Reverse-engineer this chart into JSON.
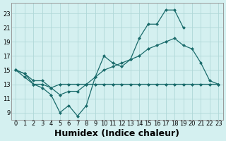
{
  "x_all": [
    0,
    1,
    2,
    3,
    4,
    5,
    6,
    7,
    8,
    9,
    10,
    11,
    12,
    13,
    14,
    15,
    16,
    17,
    18,
    19,
    20,
    21,
    22,
    23
  ],
  "curve1_x": [
    0,
    1,
    2,
    3,
    4,
    5,
    6,
    7,
    8,
    9,
    10,
    11,
    12,
    13,
    14,
    15,
    16,
    17,
    18,
    19
  ],
  "curve1_y": [
    15,
    14.5,
    13,
    12.5,
    11.5,
    9,
    10,
    8.5,
    10,
    14,
    17,
    16,
    15.5,
    16.5,
    19.5,
    21.5,
    21.5,
    23.5,
    23.5,
    21
  ],
  "curve2_x": [
    0,
    1,
    2,
    3,
    4,
    5,
    6,
    7,
    8,
    9,
    10,
    11,
    12,
    13,
    14,
    15,
    16,
    17,
    18,
    19,
    20,
    21,
    22,
    23
  ],
  "curve2_y": [
    15,
    14.5,
    13.5,
    13.5,
    12.5,
    11.5,
    12,
    12,
    13,
    14,
    15,
    15.5,
    16,
    16.5,
    17,
    18,
    18.5,
    19,
    19.5,
    18.5,
    18,
    16,
    13.5,
    13
  ],
  "curve3_x": [
    0,
    1,
    2,
    3,
    4,
    5,
    6,
    7,
    8,
    9,
    10,
    11,
    12,
    13,
    14,
    15,
    16,
    17,
    18,
    19,
    20,
    21,
    22,
    23
  ],
  "curve3_y": [
    15,
    14,
    13,
    13,
    12.5,
    13,
    13,
    13,
    13,
    13,
    13,
    13,
    13,
    13,
    13,
    13,
    13,
    13,
    13,
    13,
    13,
    13,
    13,
    13
  ],
  "line_color": "#1a6b6b",
  "bg_color": "#d4f0f0",
  "grid_color": "#b0d8d8",
  "xlabel": "Humidex (Indice chaleur)",
  "xlabel_fontsize": 9,
  "ylim": [
    8,
    24.5
  ],
  "xlim": [
    -0.5,
    23.5
  ],
  "yticks": [
    9,
    11,
    13,
    15,
    17,
    19,
    21,
    23
  ],
  "xticks": [
    0,
    1,
    2,
    3,
    4,
    5,
    6,
    7,
    8,
    9,
    10,
    11,
    12,
    13,
    14,
    15,
    16,
    17,
    18,
    19,
    20,
    21,
    22,
    23
  ]
}
